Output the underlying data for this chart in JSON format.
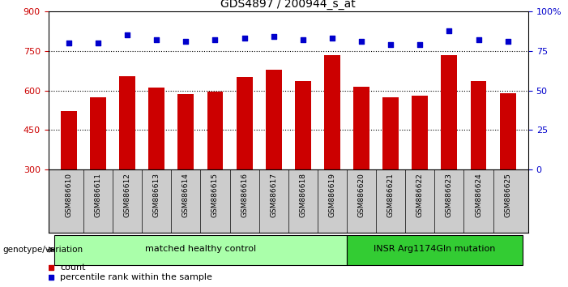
{
  "title": "GDS4897 / 200944_s_at",
  "samples": [
    "GSM886610",
    "GSM886611",
    "GSM886612",
    "GSM886613",
    "GSM886614",
    "GSM886615",
    "GSM886616",
    "GSM886617",
    "GSM886618",
    "GSM886619",
    "GSM886620",
    "GSM886621",
    "GSM886622",
    "GSM886623",
    "GSM886624",
    "GSM886625"
  ],
  "counts": [
    520,
    575,
    655,
    610,
    585,
    595,
    650,
    680,
    635,
    735,
    615,
    575,
    580,
    735,
    635,
    590
  ],
  "percentile_ranks": [
    80,
    80,
    85,
    82,
    81,
    82,
    83,
    84,
    82,
    83,
    81,
    79,
    79,
    88,
    82,
    81
  ],
  "ylim_left": [
    300,
    900
  ],
  "ylim_right": [
    0,
    100
  ],
  "yticks_left": [
    300,
    450,
    600,
    750,
    900
  ],
  "yticks_right": [
    0,
    25,
    50,
    75,
    100
  ],
  "bar_color": "#cc0000",
  "dot_color": "#0000cc",
  "bar_width": 0.55,
  "groups": [
    {
      "label": "matched healthy control",
      "start": 0,
      "end": 9,
      "color": "#aaffaa"
    },
    {
      "label": "INSR Arg1174Gln mutation",
      "start": 10,
      "end": 15,
      "color": "#33cc33"
    }
  ],
  "group_label_prefix": "genotype/variation",
  "legend_count_label": "count",
  "legend_percentile_label": "percentile rank within the sample",
  "bg_color": "#ffffff",
  "plot_bg_color": "#ffffff",
  "tick_label_color_left": "#cc0000",
  "tick_label_color_right": "#0000cc",
  "grid_color": "#000000",
  "xticklabel_bg": "#cccccc"
}
